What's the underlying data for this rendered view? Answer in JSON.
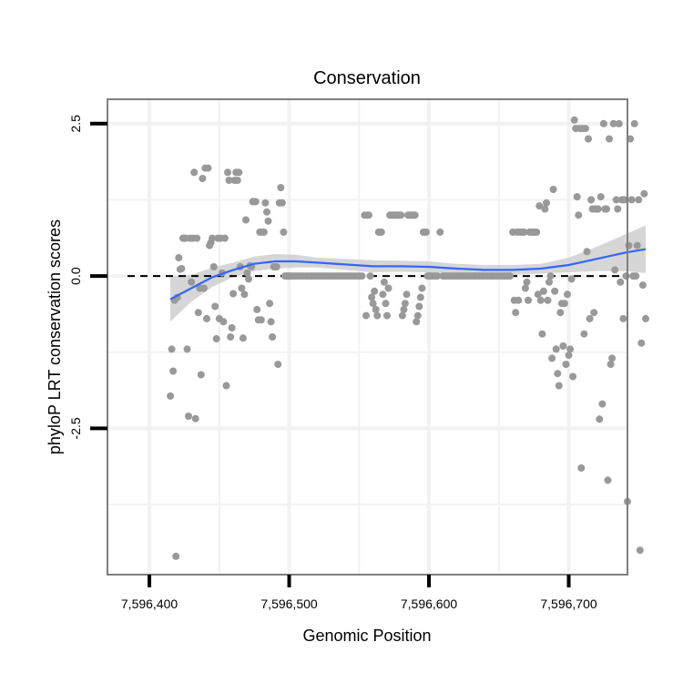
{
  "chart_data": {
    "type": "scatter",
    "title": "Conservation",
    "xlabel": "Genomic Position",
    "ylabel": "phyloP LRT conservation scores",
    "xlim": [
      7596370,
      7596742
    ],
    "ylim": [
      -4.9,
      2.9
    ],
    "x_ticks": [
      7596400,
      7596500,
      7596600,
      7596700
    ],
    "x_tick_labels": [
      "7,596,400",
      "7,596,500",
      "7,596,600",
      "7,596,700"
    ],
    "y_ticks": [
      2.5,
      0.0,
      -2.5
    ],
    "y_tick_labels": [
      "2.5",
      "0.0",
      "-2.5"
    ],
    "y_minor_grid": [
      1.25,
      -1.25,
      -3.75
    ],
    "x_minor_grid": [
      7596450,
      7596550,
      7596650
    ],
    "grid": true,
    "reference_line": {
      "y": 0,
      "style": "dashed"
    },
    "colors": {
      "points": "#999999",
      "smooth": "#3366ff",
      "ribbon": "#cccccc",
      "panel_border": "#7f7f7f",
      "grid": "#f2f2f2"
    },
    "points": [
      [
        7596415,
        -1.97
      ],
      [
        7596416,
        -1.2
      ],
      [
        7596417,
        -1.56
      ],
      [
        7596418,
        -0.4
      ],
      [
        7596419,
        -4.6
      ],
      [
        7596420,
        -0.35
      ],
      [
        7596421,
        0.3
      ],
      [
        7596422,
        0.11
      ],
      [
        7596423,
        0.12
      ],
      [
        7596424,
        0.62
      ],
      [
        7596425,
        0.62
      ],
      [
        7596426,
        0.62
      ],
      [
        7596427,
        -1.2
      ],
      [
        7596428,
        -2.3
      ],
      [
        7596429,
        0.62
      ],
      [
        7596430,
        -0.1
      ],
      [
        7596431,
        0.62
      ],
      [
        7596432,
        1.7
      ],
      [
        7596433,
        -2.34
      ],
      [
        7596434,
        0.62
      ],
      [
        7596435,
        -0.6
      ],
      [
        7596436,
        -0.2
      ],
      [
        7596437,
        -1.62
      ],
      [
        7596438,
        1.6
      ],
      [
        7596439,
        -0.2
      ],
      [
        7596440,
        1.77
      ],
      [
        7596441,
        -0.7
      ],
      [
        7596442,
        1.77
      ],
      [
        7596443,
        0.5
      ],
      [
        7596444,
        0.55
      ],
      [
        7596445,
        0.62
      ],
      [
        7596446,
        0.15
      ],
      [
        7596447,
        -0.5
      ],
      [
        7596448,
        -1.03
      ],
      [
        7596449,
        0.62
      ],
      [
        7596450,
        -0.7
      ],
      [
        7596451,
        0.62
      ],
      [
        7596452,
        0.05
      ],
      [
        7596453,
        -0.75
      ],
      [
        7596454,
        0.62
      ],
      [
        7596455,
        -1.8
      ],
      [
        7596456,
        1.7
      ],
      [
        7596457,
        1.57
      ],
      [
        7596458,
        -1.0
      ],
      [
        7596459,
        -0.85
      ],
      [
        7596460,
        -0.29
      ],
      [
        7596461,
        1.57
      ],
      [
        7596462,
        1.7
      ],
      [
        7596463,
        1.57
      ],
      [
        7596464,
        1.7
      ],
      [
        7596465,
        0.15
      ],
      [
        7596466,
        -0.2
      ],
      [
        7596467,
        -1.02
      ],
      [
        7596468,
        -0.3
      ],
      [
        7596469,
        0.92
      ],
      [
        7596470,
        0.05
      ],
      [
        7596471,
        -0.05
      ],
      [
        7596472,
        0.17
      ],
      [
        7596473,
        0.15
      ],
      [
        7596474,
        1.22
      ],
      [
        7596475,
        1.22
      ],
      [
        7596476,
        1.22
      ],
      [
        7596477,
        -0.55
      ],
      [
        7596478,
        -0.72
      ],
      [
        7596479,
        0.72
      ],
      [
        7596480,
        -0.72
      ],
      [
        7596481,
        0.72
      ],
      [
        7596482,
        0.72
      ],
      [
        7596483,
        1.2
      ],
      [
        7596484,
        1.05
      ],
      [
        7596485,
        0.9
      ],
      [
        7596486,
        -0.45
      ],
      [
        7596487,
        -0.75
      ],
      [
        7596488,
        -1.0
      ],
      [
        7596489,
        0.15
      ],
      [
        7596490,
        0.15
      ],
      [
        7596491,
        0.15
      ],
      [
        7596492,
        -1.45
      ],
      [
        7596493,
        1.2
      ],
      [
        7596494,
        1.45
      ],
      [
        7596495,
        1.2
      ],
      [
        7596496,
        0.72
      ],
      [
        7596497,
        0.0
      ],
      [
        7596498,
        0.0
      ],
      [
        7596499,
        0.0
      ],
      [
        7596500,
        0.0
      ],
      [
        7596502,
        0.0
      ],
      [
        7596504,
        0.0
      ],
      [
        7596506,
        0.0
      ],
      [
        7596508,
        0.0
      ],
      [
        7596510,
        0.0
      ],
      [
        7596512,
        0.0
      ],
      [
        7596514,
        0.0
      ],
      [
        7596516,
        0.0
      ],
      [
        7596518,
        0.0
      ],
      [
        7596520,
        0.0
      ],
      [
        7596522,
        0.0
      ],
      [
        7596524,
        0.0
      ],
      [
        7596526,
        0.0
      ],
      [
        7596528,
        0.0
      ],
      [
        7596530,
        0.0
      ],
      [
        7596532,
        0.0
      ],
      [
        7596534,
        0.0
      ],
      [
        7596536,
        0.0
      ],
      [
        7596538,
        0.0
      ],
      [
        7596540,
        0.0
      ],
      [
        7596542,
        0.0
      ],
      [
        7596544,
        0.0
      ],
      [
        7596546,
        0.0
      ],
      [
        7596548,
        0.0
      ],
      [
        7596550,
        0.0
      ],
      [
        7596552,
        0.0
      ],
      [
        7596554,
        1.0
      ],
      [
        7596555,
        -0.65
      ],
      [
        7596556,
        1.0
      ],
      [
        7596557,
        1.0
      ],
      [
        7596558,
        0.0
      ],
      [
        7596559,
        -0.35
      ],
      [
        7596560,
        -0.45
      ],
      [
        7596561,
        -0.25
      ],
      [
        7596562,
        -0.55
      ],
      [
        7596563,
        -0.65
      ],
      [
        7596564,
        0.72
      ],
      [
        7596565,
        0.72
      ],
      [
        7596566,
        0.72
      ],
      [
        7596567,
        -0.3
      ],
      [
        7596568,
        -0.1
      ],
      [
        7596569,
        -0.45
      ],
      [
        7596570,
        -0.65
      ],
      [
        7596571,
        -0.2
      ],
      [
        7596572,
        1.0
      ],
      [
        7596573,
        1.0
      ],
      [
        7596574,
        1.0
      ],
      [
        7596575,
        1.0
      ],
      [
        7596576,
        1.0
      ],
      [
        7596577,
        1.0
      ],
      [
        7596578,
        1.0
      ],
      [
        7596579,
        1.0
      ],
      [
        7596580,
        1.0
      ],
      [
        7596581,
        -0.65
      ],
      [
        7596582,
        -0.55
      ],
      [
        7596583,
        -0.45
      ],
      [
        7596584,
        -0.3
      ],
      [
        7596585,
        1.0
      ],
      [
        7596586,
        1.0
      ],
      [
        7596587,
        1.0
      ],
      [
        7596588,
        1.0
      ],
      [
        7596589,
        1.0
      ],
      [
        7596590,
        1.0
      ],
      [
        7596591,
        -0.75
      ],
      [
        7596592,
        -0.65
      ],
      [
        7596593,
        -0.5
      ],
      [
        7596594,
        -0.35
      ],
      [
        7596595,
        -0.2
      ],
      [
        7596596,
        0.72
      ],
      [
        7596597,
        0.72
      ],
      [
        7596598,
        0.72
      ],
      [
        7596599,
        0.0
      ],
      [
        7596600,
        0.0
      ],
      [
        7596601,
        0.0
      ],
      [
        7596602,
        0.0
      ],
      [
        7596604,
        0.0
      ],
      [
        7596606,
        0.0
      ],
      [
        7596608,
        0.72
      ],
      [
        7596610,
        0.0
      ],
      [
        7596612,
        0.0
      ],
      [
        7596614,
        0.0
      ],
      [
        7596616,
        0.0
      ],
      [
        7596618,
        0.0
      ],
      [
        7596620,
        0.0
      ],
      [
        7596622,
        0.0
      ],
      [
        7596624,
        0.0
      ],
      [
        7596626,
        0.0
      ],
      [
        7596628,
        0.0
      ],
      [
        7596630,
        0.0
      ],
      [
        7596632,
        0.0
      ],
      [
        7596634,
        0.0
      ],
      [
        7596636,
        0.0
      ],
      [
        7596638,
        0.0
      ],
      [
        7596640,
        0.0
      ],
      [
        7596642,
        0.0
      ],
      [
        7596644,
        0.0
      ],
      [
        7596646,
        0.0
      ],
      [
        7596648,
        0.0
      ],
      [
        7596650,
        0.0
      ],
      [
        7596652,
        0.0
      ],
      [
        7596654,
        0.0
      ],
      [
        7596656,
        0.0
      ],
      [
        7596658,
        0.0
      ],
      [
        7596660,
        0.72
      ],
      [
        7596661,
        -0.4
      ],
      [
        7596662,
        -0.6
      ],
      [
        7596663,
        0.72
      ],
      [
        7596664,
        -0.4
      ],
      [
        7596665,
        0.72
      ],
      [
        7596666,
        0.72
      ],
      [
        7596667,
        0.72
      ],
      [
        7596668,
        0.72
      ],
      [
        7596669,
        -0.2
      ],
      [
        7596670,
        -0.1
      ],
      [
        7596671,
        -0.4
      ],
      [
        7596672,
        0.72
      ],
      [
        7596673,
        0.72
      ],
      [
        7596674,
        0.72
      ],
      [
        7596675,
        0.72
      ],
      [
        7596676,
        0.72
      ],
      [
        7596677,
        0.72
      ],
      [
        7596678,
        -0.3
      ],
      [
        7596679,
        1.15
      ],
      [
        7596680,
        -0.4
      ],
      [
        7596681,
        -0.95
      ],
      [
        7596682,
        -0.25
      ],
      [
        7596683,
        1.1
      ],
      [
        7596684,
        1.2
      ],
      [
        7596685,
        -0.4
      ],
      [
        7596686,
        -0.1
      ],
      [
        7596687,
        0.0
      ],
      [
        7596688,
        -1.35
      ],
      [
        7596689,
        1.42
      ],
      [
        7596690,
        -0.25
      ],
      [
        7596691,
        -1.2
      ],
      [
        7596692,
        -1.6
      ],
      [
        7596693,
        -1.8
      ],
      [
        7596694,
        -0.6
      ],
      [
        7596695,
        -0.45
      ],
      [
        7596696,
        -1.15
      ],
      [
        7596697,
        -0.45
      ],
      [
        7596698,
        -1.45
      ],
      [
        7596699,
        -0.3
      ],
      [
        7596700,
        -1.3
      ],
      [
        7596701,
        -1.2
      ],
      [
        7596702,
        -0.05
      ],
      [
        7596703,
        -1.65
      ],
      [
        7596704,
        2.56
      ],
      [
        7596705,
        2.42
      ],
      [
        7596706,
        1.3
      ],
      [
        7596707,
        1.0
      ],
      [
        7596708,
        2.42
      ],
      [
        7596709,
        -3.15
      ],
      [
        7596710,
        2.42
      ],
      [
        7596711,
        -0.95
      ],
      [
        7596712,
        2.42
      ],
      [
        7596713,
        0.4
      ],
      [
        7596714,
        2.25
      ],
      [
        7596715,
        -0.7
      ],
      [
        7596716,
        1.25
      ],
      [
        7596717,
        1.1
      ],
      [
        7596718,
        -0.6
      ],
      [
        7596719,
        1.1
      ],
      [
        7596720,
        1.1
      ],
      [
        7596721,
        1.1
      ],
      [
        7596722,
        -2.35
      ],
      [
        7596723,
        1.3
      ],
      [
        7596724,
        -2.1
      ],
      [
        7596725,
        2.5
      ],
      [
        7596726,
        1.1
      ],
      [
        7596727,
        1.1
      ],
      [
        7596728,
        -3.35
      ],
      [
        7596729,
        2.25
      ],
      [
        7596730,
        -1.45
      ],
      [
        7596731,
        -1.35
      ],
      [
        7596732,
        2.5
      ],
      [
        7596733,
        0.1
      ],
      [
        7596734,
        1.25
      ],
      [
        7596735,
        1.1
      ],
      [
        7596736,
        2.5
      ],
      [
        7596737,
        -0.1
      ],
      [
        7596738,
        1.25
      ],
      [
        7596739,
        -0.7
      ],
      [
        7596740,
        1.25
      ],
      [
        7596741,
        0.0
      ],
      [
        7596742,
        -3.7
      ],
      [
        7596743,
        0.5
      ],
      [
        7596744,
        2.25
      ],
      [
        7596745,
        1.25
      ],
      [
        7596746,
        0.0
      ],
      [
        7596747,
        2.5
      ],
      [
        7596748,
        0.0
      ],
      [
        7596749,
        0.5
      ],
      [
        7596750,
        1.25
      ],
      [
        7596751,
        -4.5
      ],
      [
        7596752,
        -1.1
      ],
      [
        7596753,
        -0.15
      ],
      [
        7596754,
        1.35
      ],
      [
        7596755,
        -0.7
      ]
    ],
    "smooth": {
      "x": [
        7596415,
        7596430,
        7596445,
        7596460,
        7596475,
        7596490,
        7596505,
        7596520,
        7596540,
        7596560,
        7596580,
        7596600,
        7596620,
        7596640,
        7596660,
        7596680,
        7596700,
        7596720,
        7596740,
        7596755
      ],
      "y": [
        -0.38,
        -0.2,
        -0.02,
        0.1,
        0.2,
        0.24,
        0.24,
        0.22,
        0.19,
        0.16,
        0.16,
        0.15,
        0.12,
        0.1,
        0.1,
        0.12,
        0.18,
        0.28,
        0.38,
        0.44
      ],
      "lower": [
        -0.75,
        -0.42,
        -0.18,
        -0.02,
        0.08,
        0.12,
        0.14,
        0.14,
        0.1,
        0.06,
        0.07,
        0.06,
        0.04,
        0.02,
        0.02,
        0.04,
        0.06,
        0.08,
        0.08,
        0.05
      ],
      "upper": [
        -0.01,
        0.02,
        0.14,
        0.22,
        0.32,
        0.36,
        0.35,
        0.3,
        0.28,
        0.26,
        0.25,
        0.24,
        0.2,
        0.18,
        0.18,
        0.2,
        0.3,
        0.48,
        0.68,
        0.83
      ]
    }
  }
}
